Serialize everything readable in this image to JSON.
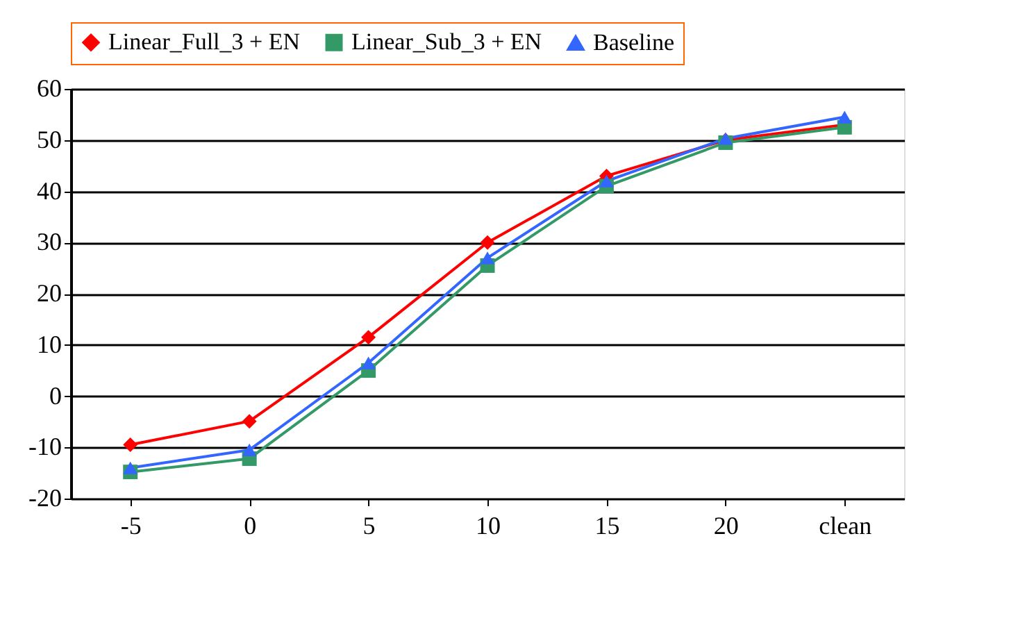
{
  "chart_data": {
    "type": "line",
    "categories": [
      "-5",
      "0",
      "5",
      "10",
      "15",
      "20",
      "clean"
    ],
    "series": [
      {
        "name": "Linear_Full_3 + EN",
        "color": "#ff0000",
        "marker": "diamond",
        "values": [
          -9.5,
          -4.9,
          11.5,
          30,
          43,
          50,
          53
        ]
      },
      {
        "name": "Linear_Sub_3 + EN",
        "color": "#339966",
        "marker": "square",
        "values": [
          -14.8,
          -12.2,
          5,
          25.5,
          41,
          49.5,
          52.5
        ]
      },
      {
        "name": "Baseline",
        "color": "#3366ff",
        "marker": "triangle",
        "values": [
          -14,
          -10.5,
          6.5,
          27,
          42,
          50.3,
          54.5
        ]
      }
    ],
    "ylim": [
      -20,
      60
    ],
    "yticks": [
      -20,
      -10,
      0,
      10,
      20,
      30,
      40,
      50,
      60
    ],
    "grid": "y",
    "legend": "top"
  }
}
